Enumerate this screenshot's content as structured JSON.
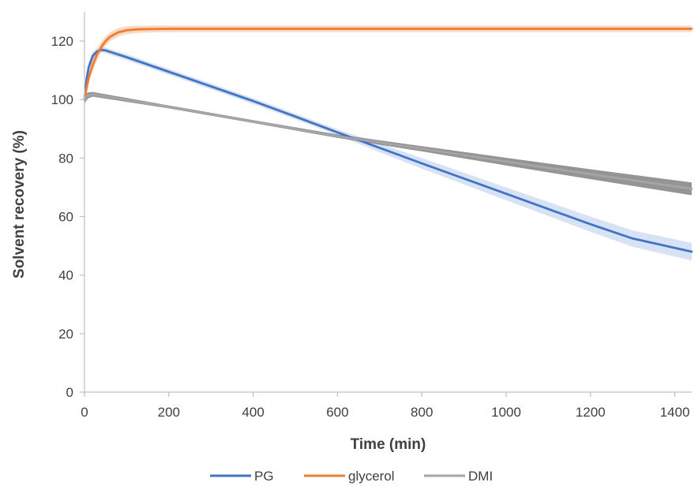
{
  "chart_data": {
    "type": "line",
    "xlabel": "Time (min)",
    "ylabel": "Solvent recovery (%)",
    "xlim": [
      0,
      1440
    ],
    "ylim": [
      0,
      130
    ],
    "xticks": [
      0,
      200,
      400,
      600,
      800,
      1000,
      1200,
      1400
    ],
    "yticks": [
      0,
      20,
      40,
      60,
      80,
      100,
      120
    ],
    "xtick_labels": [
      "0",
      "200",
      "400",
      "600",
      "800",
      "1000",
      "1200",
      "1400"
    ],
    "ytick_labels": [
      "0",
      "20",
      "40",
      "60",
      "80",
      "100",
      "120"
    ],
    "grid": false,
    "legend_position": "bottom",
    "series": [
      {
        "name": "PG",
        "color": "#4472C4",
        "band_color": "#C9D9F2",
        "x": [
          0,
          5,
          10,
          20,
          30,
          40,
          50,
          100,
          200,
          300,
          400,
          500,
          600,
          700,
          800,
          900,
          1000,
          1100,
          1200,
          1300,
          1440
        ],
        "y": [
          100,
          107,
          111,
          115,
          116.5,
          117,
          116.8,
          114.5,
          109.5,
          104.5,
          99.5,
          94.2,
          88.8,
          83.5,
          78.2,
          73.0,
          67.8,
          62.6,
          57.4,
          52.5,
          48
        ],
        "band_halfwidth": [
          1.5,
          2,
          2,
          1.5,
          1,
          1,
          1,
          1,
          1,
          1,
          1,
          1,
          1,
          1.5,
          1.8,
          2,
          2.2,
          2.4,
          2.6,
          2.8,
          3
        ]
      },
      {
        "name": "glycerol",
        "color": "#ED7D31",
        "band_color": "#F8CBAD",
        "x": [
          0,
          5,
          10,
          20,
          30,
          40,
          50,
          60,
          80,
          100,
          125,
          150,
          200,
          300,
          500,
          800,
          1100,
          1440
        ],
        "y": [
          100,
          104,
          107.5,
          112,
          115.5,
          118,
          120,
          121.4,
          123.0,
          123.7,
          124.0,
          124.1,
          124.2,
          124.2,
          124.2,
          124.2,
          124.2,
          124.2
        ],
        "band_halfwidth": [
          1,
          1.5,
          2,
          2,
          2,
          1.8,
          1.6,
          1.5,
          1.4,
          1.3,
          1.2,
          1.2,
          1.1,
          1.1,
          1.1,
          1.1,
          1.1,
          1.1
        ]
      },
      {
        "name": "DMI",
        "color": "#A5A5A5",
        "band_color": "#707070",
        "x": [
          0,
          5,
          10,
          20,
          200,
          400,
          600,
          800,
          1000,
          1200,
          1440
        ],
        "y": [
          100,
          101,
          101.5,
          101.8,
          97.5,
          92.5,
          87.5,
          83.2,
          78.8,
          74.5,
          69.5
        ],
        "band_halfwidth": [
          1.5,
          1.2,
          1,
          0.8,
          0.5,
          0.5,
          0.6,
          0.9,
          1.3,
          1.7,
          2.2
        ]
      }
    ]
  }
}
